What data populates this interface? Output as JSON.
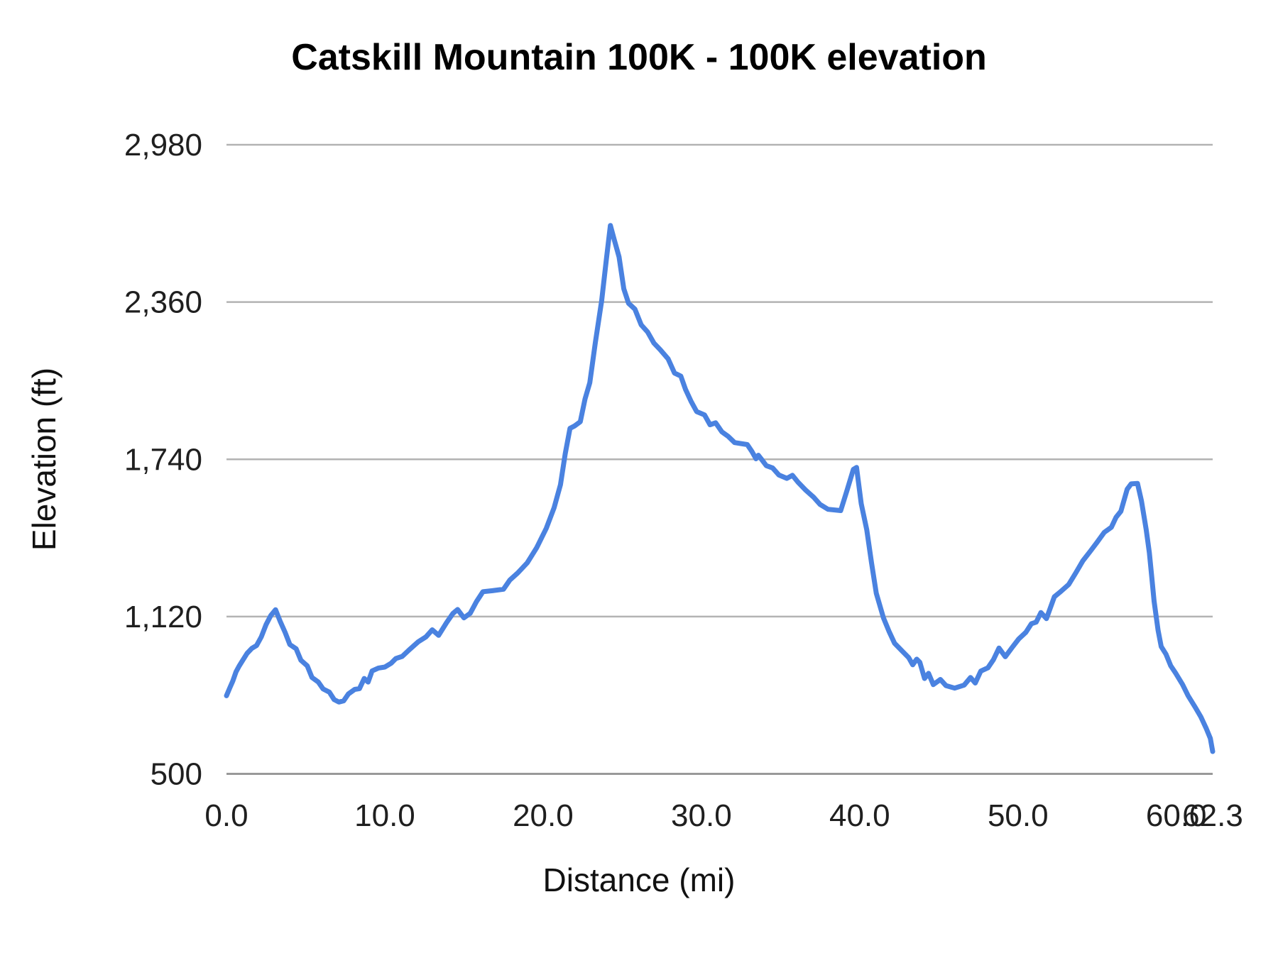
{
  "chart_data": {
    "type": "line",
    "title": "Catskill Mountain 100K - 100K elevation",
    "xlabel": "Distance (mi)",
    "ylabel": "Elevation (ft)",
    "x_range": [
      0,
      62.3
    ],
    "y_range": [
      500,
      2980
    ],
    "grid": "horizontal-only",
    "legend_position": "none",
    "line_color": "#4a82e0",
    "grid_color": "#b3b3b3",
    "baseline_color": "#999999",
    "y_ticks": [
      {
        "value": 500,
        "label": "500"
      },
      {
        "value": 1120,
        "label": "1,120"
      },
      {
        "value": 1740,
        "label": "1,740"
      },
      {
        "value": 2360,
        "label": "2,360"
      },
      {
        "value": 2980,
        "label": "2,980"
      }
    ],
    "x_ticks": [
      {
        "value": 0,
        "label": "0.0"
      },
      {
        "value": 10,
        "label": "10.0"
      },
      {
        "value": 20,
        "label": "20.0"
      },
      {
        "value": 30,
        "label": "30.0"
      },
      {
        "value": 40,
        "label": "40.0"
      },
      {
        "value": 50,
        "label": "50.0"
      },
      {
        "value": 60,
        "label": "60.0"
      },
      {
        "value": 62.3,
        "label": "62.3"
      }
    ],
    "series": [
      {
        "points": [
          [
            0,
            808
          ],
          [
            0.2,
            838
          ],
          [
            0.4,
            866
          ],
          [
            0.6,
            902
          ],
          [
            0.8,
            925
          ],
          [
            1.0,
            945
          ],
          [
            1.3,
            975
          ],
          [
            1.6,
            995
          ],
          [
            1.9,
            1006
          ],
          [
            2.2,
            1040
          ],
          [
            2.5,
            1088
          ],
          [
            2.8,
            1124
          ],
          [
            3.1,
            1147
          ],
          [
            3.4,
            1100
          ],
          [
            3.7,
            1058
          ],
          [
            4.0,
            1010
          ],
          [
            4.4,
            993
          ],
          [
            4.7,
            948
          ],
          [
            5.1,
            926
          ],
          [
            5.4,
            880
          ],
          [
            5.8,
            862
          ],
          [
            6.1,
            835
          ],
          [
            6.5,
            822
          ],
          [
            6.8,
            793
          ],
          [
            7.1,
            783
          ],
          [
            7.4,
            788
          ],
          [
            7.7,
            815
          ],
          [
            8.1,
            833
          ],
          [
            8.4,
            836
          ],
          [
            8.7,
            876
          ],
          [
            8.95,
            862
          ],
          [
            9.2,
            906
          ],
          [
            9.6,
            917
          ],
          [
            10.0,
            921
          ],
          [
            10.4,
            936
          ],
          [
            10.7,
            955
          ],
          [
            11.1,
            963
          ],
          [
            11.6,
            992
          ],
          [
            12.1,
            1020
          ],
          [
            12.6,
            1040
          ],
          [
            13.0,
            1068
          ],
          [
            13.4,
            1046
          ],
          [
            13.9,
            1096
          ],
          [
            14.3,
            1132
          ],
          [
            14.6,
            1148
          ],
          [
            15.0,
            1115
          ],
          [
            15.4,
            1133
          ],
          [
            15.8,
            1180
          ],
          [
            16.2,
            1218
          ],
          [
            16.8,
            1222
          ],
          [
            17.5,
            1228
          ],
          [
            17.9,
            1264
          ],
          [
            18.4,
            1292
          ],
          [
            19.0,
            1332
          ],
          [
            19.6,
            1392
          ],
          [
            20.2,
            1468
          ],
          [
            20.7,
            1550
          ],
          [
            21.1,
            1640
          ],
          [
            21.4,
            1762
          ],
          [
            21.7,
            1862
          ],
          [
            22.0,
            1872
          ],
          [
            22.35,
            1888
          ],
          [
            22.65,
            1978
          ],
          [
            22.95,
            2042
          ],
          [
            23.3,
            2200
          ],
          [
            23.7,
            2365
          ],
          [
            24.0,
            2530
          ],
          [
            24.25,
            2662
          ],
          [
            24.5,
            2605
          ],
          [
            24.8,
            2538
          ],
          [
            25.1,
            2412
          ],
          [
            25.4,
            2355
          ],
          [
            25.8,
            2332
          ],
          [
            26.2,
            2270
          ],
          [
            26.6,
            2242
          ],
          [
            27.0,
            2198
          ],
          [
            27.4,
            2172
          ],
          [
            27.9,
            2136
          ],
          [
            28.3,
            2080
          ],
          [
            28.7,
            2068
          ],
          [
            29.0,
            2015
          ],
          [
            29.35,
            1968
          ],
          [
            29.7,
            1928
          ],
          [
            30.2,
            1915
          ],
          [
            30.55,
            1876
          ],
          [
            30.9,
            1884
          ],
          [
            31.3,
            1848
          ],
          [
            31.7,
            1830
          ],
          [
            32.1,
            1806
          ],
          [
            32.9,
            1798
          ],
          [
            33.2,
            1770
          ],
          [
            33.45,
            1742
          ],
          [
            33.6,
            1756
          ],
          [
            33.8,
            1740
          ],
          [
            34.1,
            1715
          ],
          [
            34.5,
            1706
          ],
          [
            34.9,
            1678
          ],
          [
            35.4,
            1665
          ],
          [
            35.75,
            1677
          ],
          [
            36.1,
            1650
          ],
          [
            36.6,
            1618
          ],
          [
            37.1,
            1590
          ],
          [
            37.5,
            1562
          ],
          [
            38.0,
            1543
          ],
          [
            38.8,
            1538
          ],
          [
            39.2,
            1618
          ],
          [
            39.6,
            1700
          ],
          [
            39.8,
            1708
          ],
          [
            40.1,
            1565
          ],
          [
            40.45,
            1462
          ],
          [
            40.75,
            1332
          ],
          [
            41.05,
            1212
          ],
          [
            41.5,
            1115
          ],
          [
            41.85,
            1062
          ],
          [
            42.2,
            1015
          ],
          [
            42.7,
            983
          ],
          [
            43.1,
            958
          ],
          [
            43.35,
            930
          ],
          [
            43.6,
            952
          ],
          [
            43.8,
            940
          ],
          [
            44.1,
            876
          ],
          [
            44.35,
            896
          ],
          [
            44.65,
            852
          ],
          [
            45.1,
            872
          ],
          [
            45.45,
            848
          ],
          [
            46.0,
            838
          ],
          [
            46.6,
            850
          ],
          [
            47.0,
            880
          ],
          [
            47.3,
            858
          ],
          [
            47.65,
            905
          ],
          [
            48.1,
            918
          ],
          [
            48.45,
            950
          ],
          [
            48.8,
            996
          ],
          [
            49.2,
            962
          ],
          [
            49.65,
            1000
          ],
          [
            50.05,
            1032
          ],
          [
            50.5,
            1058
          ],
          [
            50.85,
            1092
          ],
          [
            51.15,
            1098
          ],
          [
            51.45,
            1136
          ],
          [
            51.8,
            1112
          ],
          [
            52.3,
            1198
          ],
          [
            52.65,
            1216
          ],
          [
            53.2,
            1246
          ],
          [
            53.65,
            1292
          ],
          [
            54.1,
            1340
          ],
          [
            54.55,
            1376
          ],
          [
            55.0,
            1413
          ],
          [
            55.45,
            1452
          ],
          [
            55.9,
            1472
          ],
          [
            56.2,
            1512
          ],
          [
            56.5,
            1535
          ],
          [
            56.9,
            1622
          ],
          [
            57.15,
            1643
          ],
          [
            57.55,
            1645
          ],
          [
            57.8,
            1576
          ],
          [
            58.1,
            1462
          ],
          [
            58.3,
            1372
          ],
          [
            58.45,
            1276
          ],
          [
            58.6,
            1180
          ],
          [
            58.85,
            1066
          ],
          [
            59.05,
            1002
          ],
          [
            59.35,
            972
          ],
          [
            59.65,
            926
          ],
          [
            59.95,
            898
          ],
          [
            60.4,
            852
          ],
          [
            60.75,
            808
          ],
          [
            61.2,
            762
          ],
          [
            61.55,
            725
          ],
          [
            61.9,
            678
          ],
          [
            62.15,
            640
          ],
          [
            62.3,
            588
          ]
        ]
      }
    ]
  }
}
